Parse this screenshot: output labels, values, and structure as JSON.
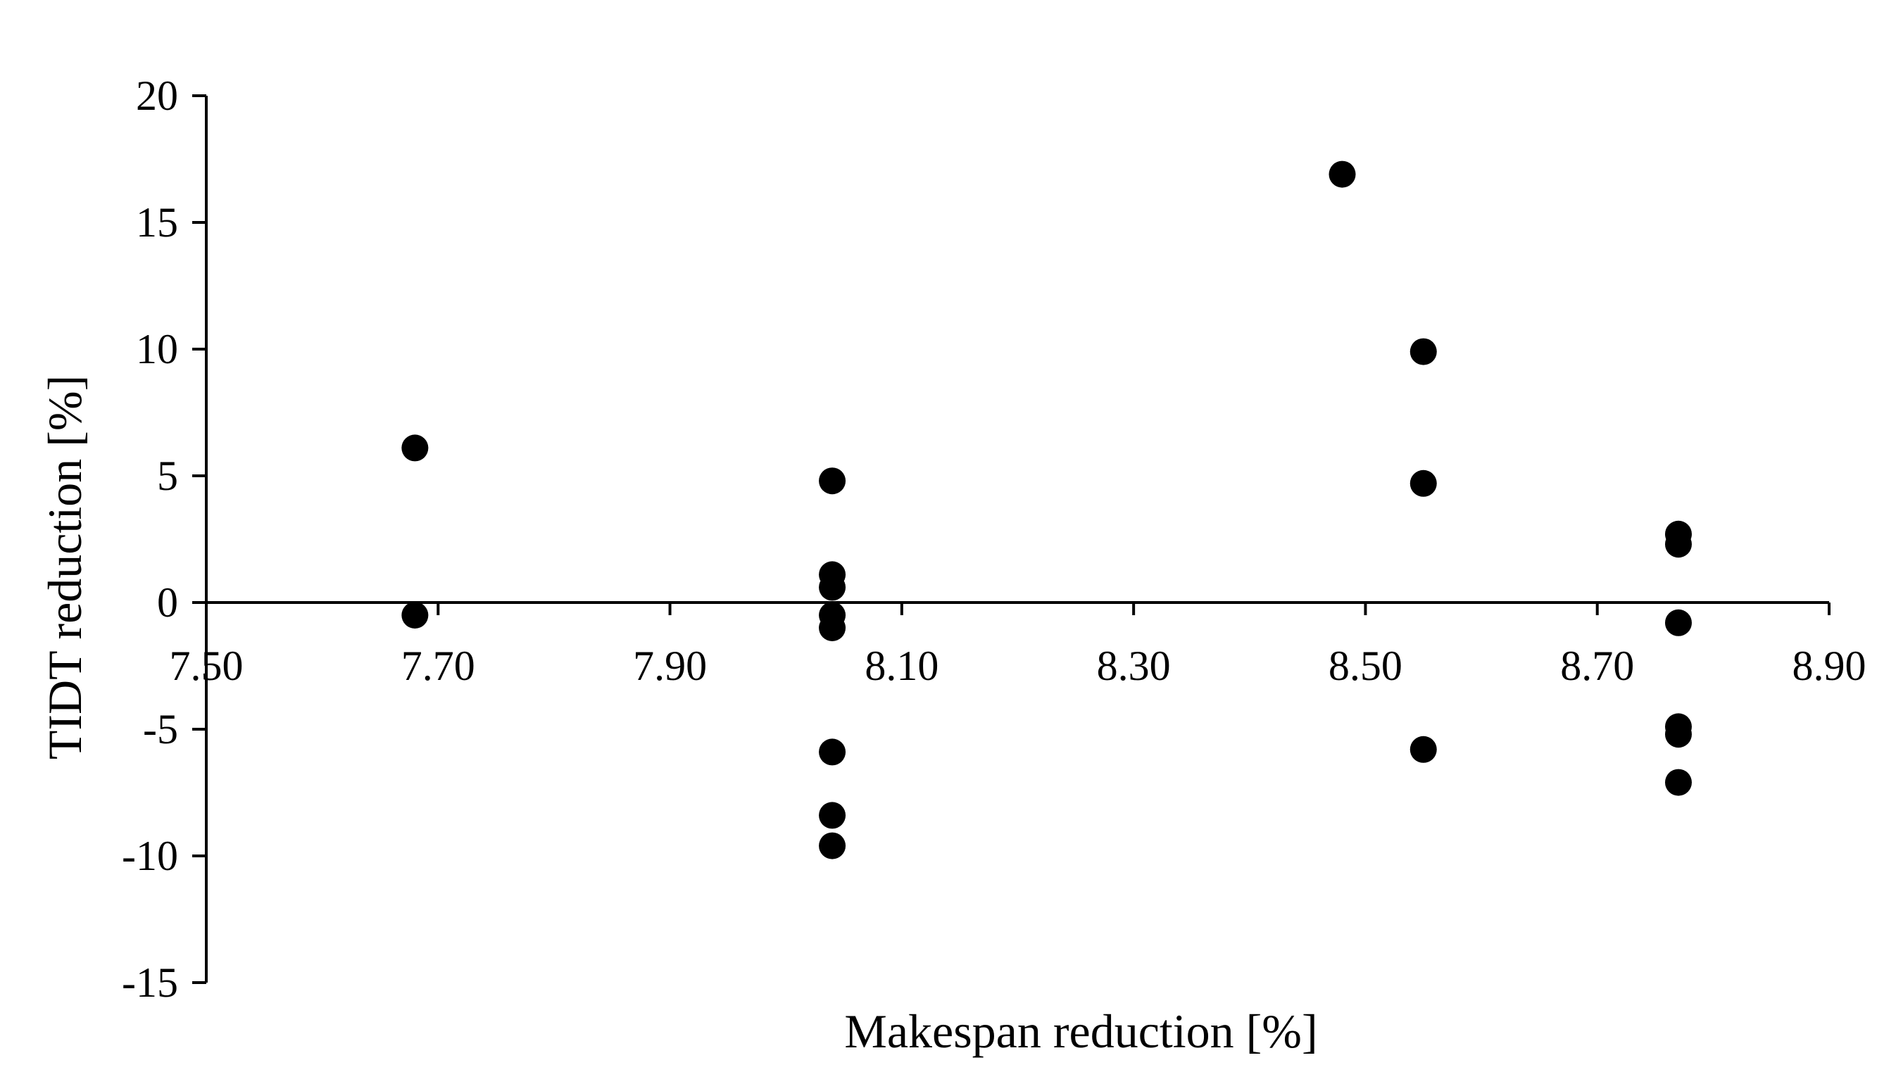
{
  "chart_data": {
    "type": "scatter",
    "title": "",
    "xlabel": "Makespan reduction [%]",
    "ylabel": "TIDT reduction [%]",
    "xlim": [
      7.5,
      8.9
    ],
    "ylim": [
      -15,
      20
    ],
    "xticks": [
      "7.50",
      "7.70",
      "7.90",
      "8.10",
      "8.30",
      "8.50",
      "8.70",
      "8.90"
    ],
    "yticks": [
      "20",
      "15",
      "10",
      "5",
      "0",
      "-5",
      "-10",
      "-15"
    ],
    "grid": false,
    "legend": "none",
    "marker_color": "#000000",
    "series": [
      {
        "points": [
          {
            "x": 7.68,
            "y": 6.1
          },
          {
            "x": 7.68,
            "y": -0.5
          },
          {
            "x": 8.04,
            "y": 4.8
          },
          {
            "x": 8.04,
            "y": 1.1
          },
          {
            "x": 8.04,
            "y": 0.6
          },
          {
            "x": 8.04,
            "y": -0.5
          },
          {
            "x": 8.04,
            "y": -1.0
          },
          {
            "x": 8.04,
            "y": -5.9
          },
          {
            "x": 8.04,
            "y": -8.4
          },
          {
            "x": 8.04,
            "y": -9.6
          },
          {
            "x": 8.48,
            "y": 16.9
          },
          {
            "x": 8.55,
            "y": 9.9
          },
          {
            "x": 8.55,
            "y": 4.7
          },
          {
            "x": 8.55,
            "y": -5.8
          },
          {
            "x": 8.77,
            "y": 2.7
          },
          {
            "x": 8.77,
            "y": 2.3
          },
          {
            "x": 8.77,
            "y": -0.8
          },
          {
            "x": 8.77,
            "y": -4.9
          },
          {
            "x": 8.77,
            "y": -5.2
          },
          {
            "x": 8.77,
            "y": -7.1
          }
        ]
      }
    ]
  }
}
